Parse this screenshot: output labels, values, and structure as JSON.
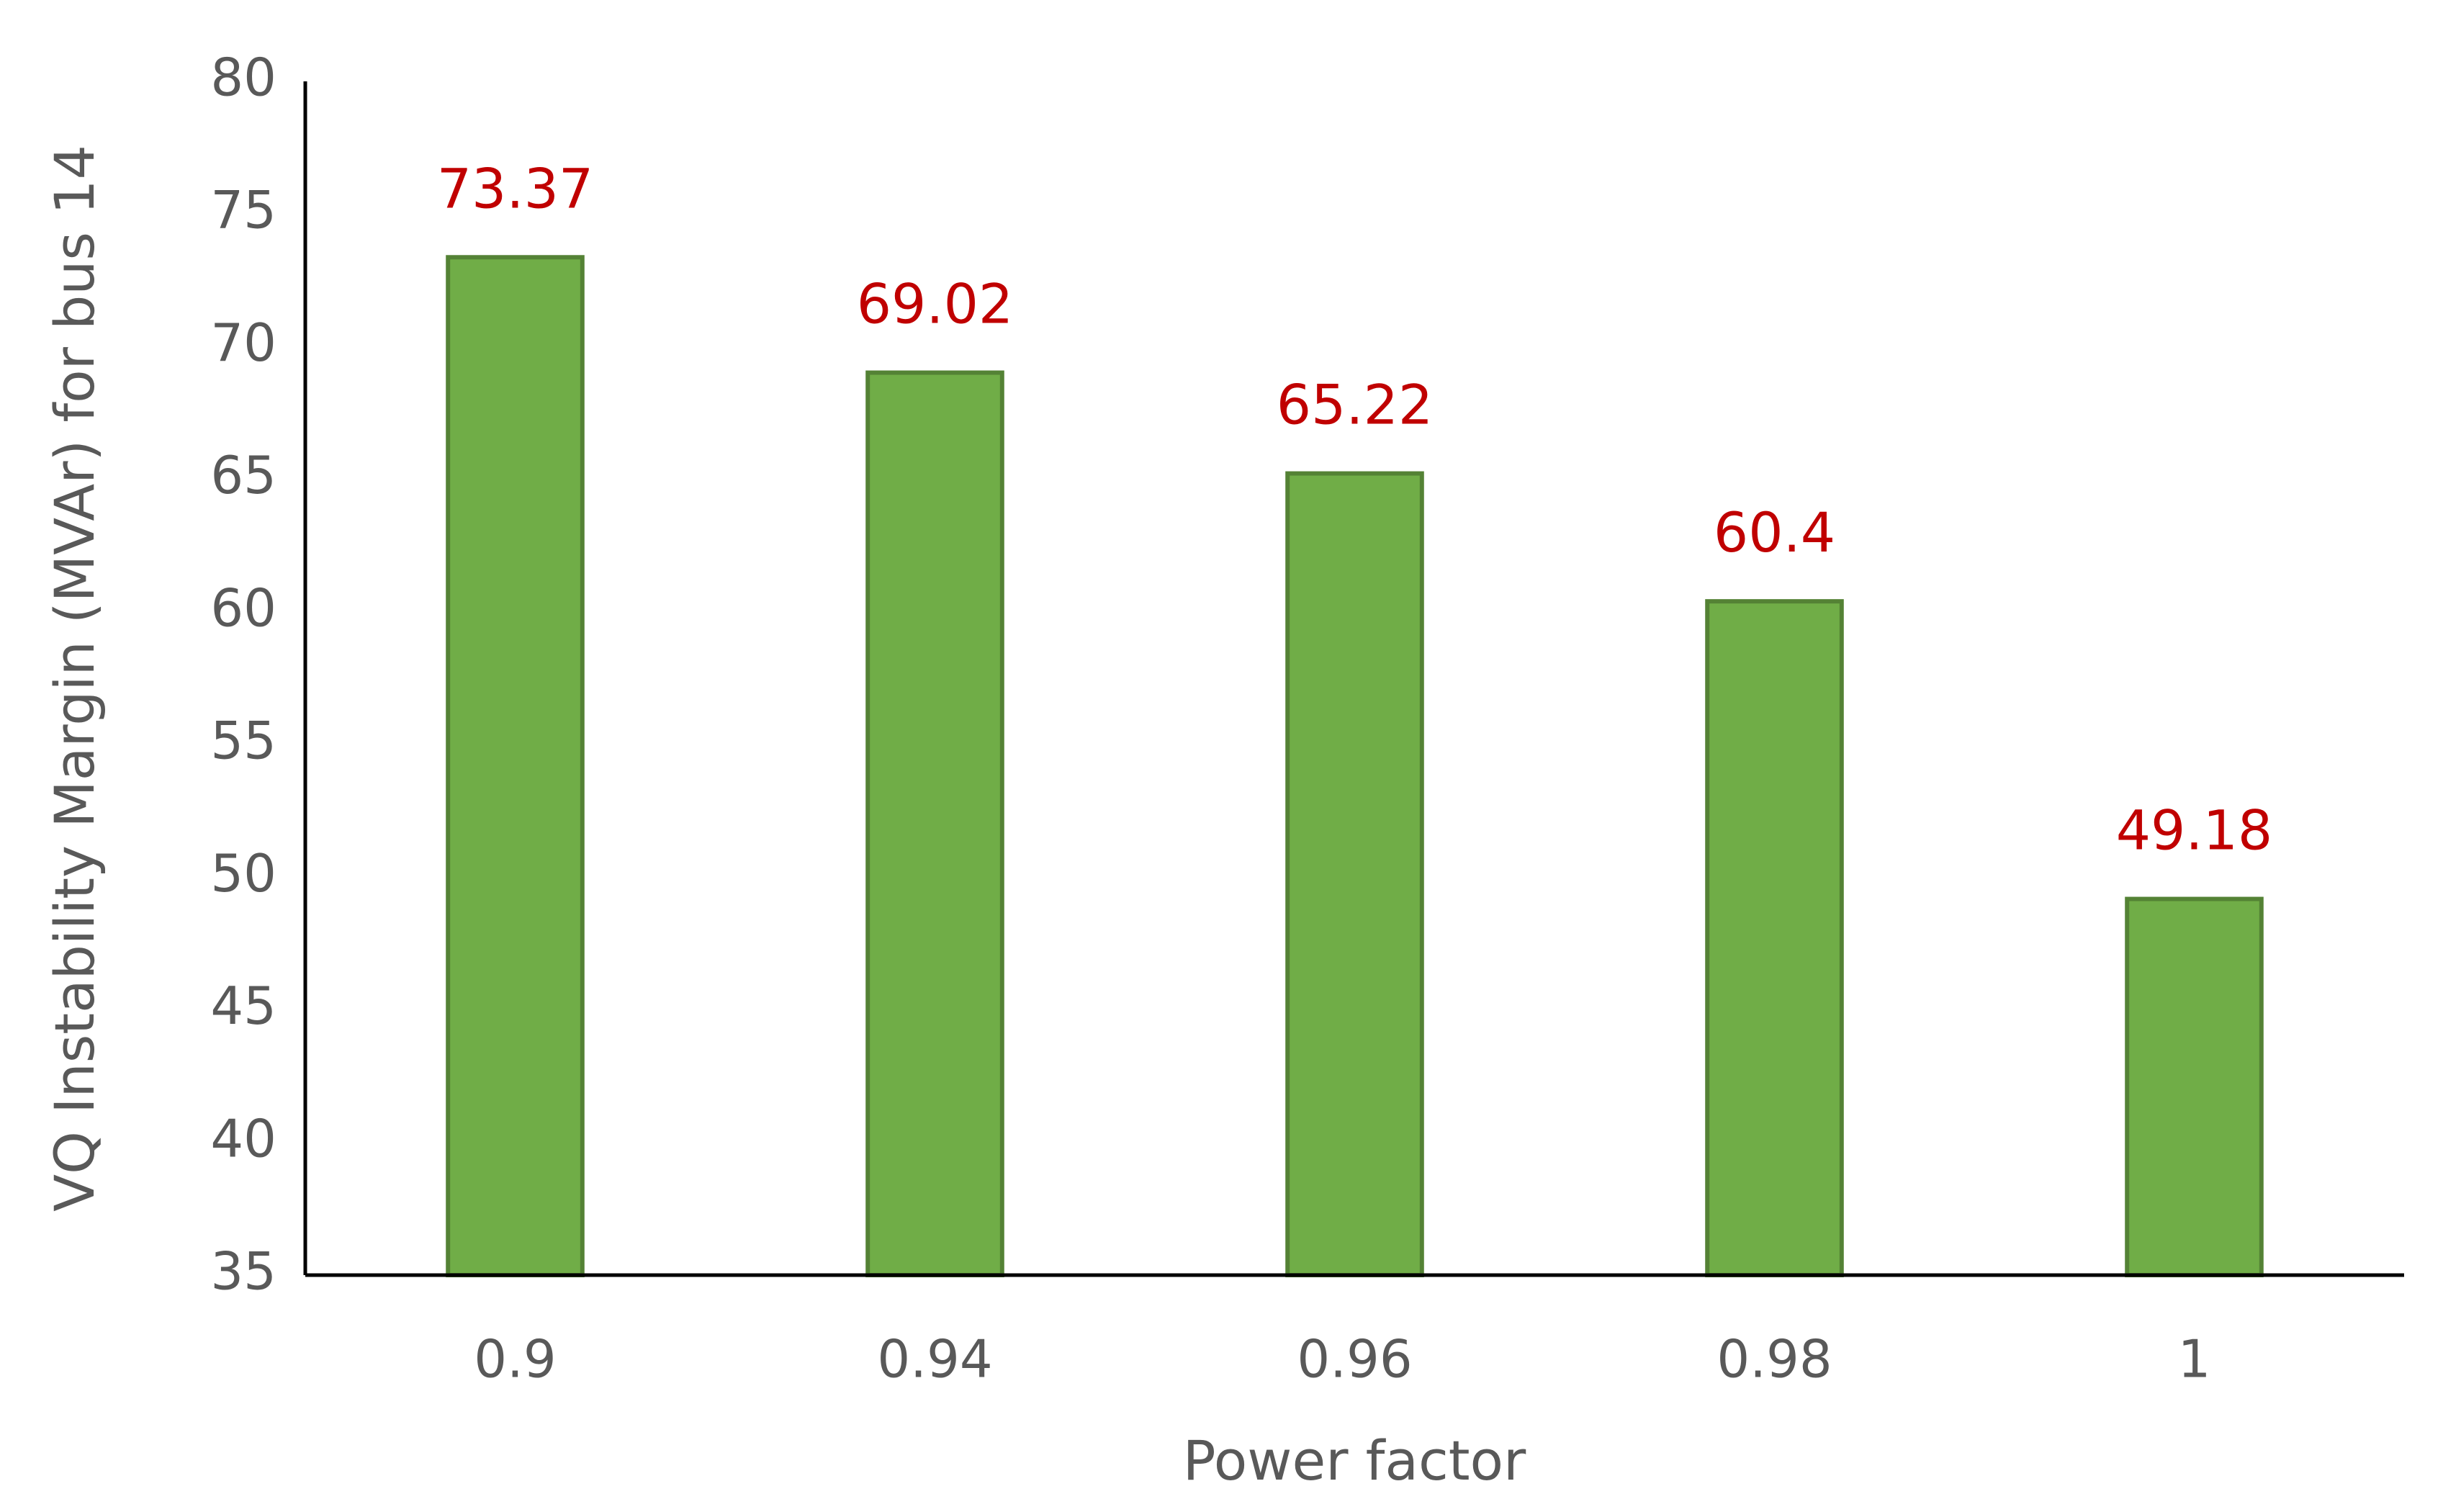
{
  "chart_data": {
    "type": "bar",
    "x_label": "Power factor",
    "y_label": "VQ Instability Margin (MVAr) for bus 14",
    "categories": [
      "0.9",
      "0.94",
      "0.96",
      "0.98",
      "1"
    ],
    "values": [
      73.37,
      69.02,
      65.22,
      60.4,
      49.18
    ],
    "color": "#70ad47",
    "edge_color": "#548235",
    "label_color": "#c00000",
    "ylim": [
      35,
      80
    ],
    "yticks": [
      35,
      40,
      45,
      50,
      55,
      60,
      65,
      70,
      75,
      80
    ],
    "grid": false
  }
}
